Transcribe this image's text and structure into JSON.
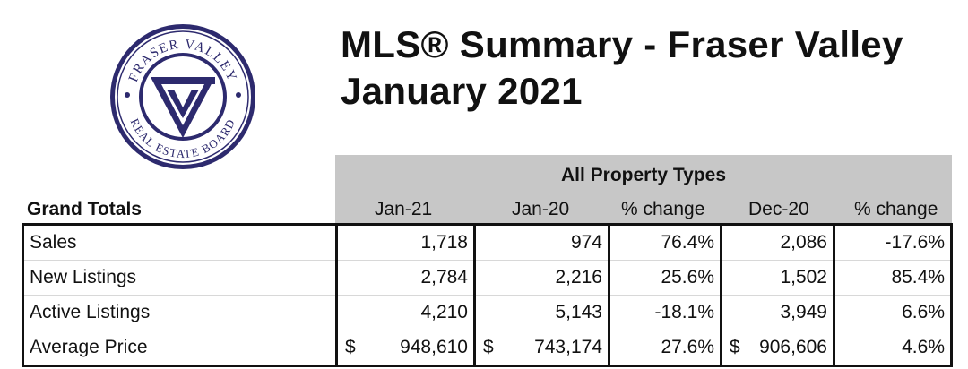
{
  "logo": {
    "icon": "fraser-valley-real-estate-board-seal",
    "text_top": "FRASER VALLEY",
    "text_bottom": "REAL ESTATE BOARD",
    "color": "#2d2a6e"
  },
  "title": {
    "line1": "MLS® Summary - Fraser Valley",
    "line2": "January 2021"
  },
  "table": {
    "group_header": "All Property Types",
    "row_header": "Grand Totals",
    "columns": [
      "Jan-21",
      "Jan-20",
      "% change",
      "Dec-20",
      "% change"
    ],
    "rows": [
      {
        "label": "Sales",
        "jan21": "1,718",
        "jan20": "974",
        "pct_yoy": "76.4%",
        "dec20": "2,086",
        "pct_mom": "-17.6%"
      },
      {
        "label": "New Listings",
        "jan21": "2,784",
        "jan20": "2,216",
        "pct_yoy": "25.6%",
        "dec20": "1,502",
        "pct_mom": "85.4%"
      },
      {
        "label": "Active Listings",
        "jan21": "4,210",
        "jan20": "5,143",
        "pct_yoy": "-18.1%",
        "dec20": "3,949",
        "pct_mom": "6.6%"
      },
      {
        "label": "Average Price",
        "currency": "$",
        "jan21": "948,610",
        "jan20": "743,174",
        "pct_yoy": "27.6%",
        "dec20": "906,606",
        "pct_mom": "4.6%"
      }
    ]
  }
}
